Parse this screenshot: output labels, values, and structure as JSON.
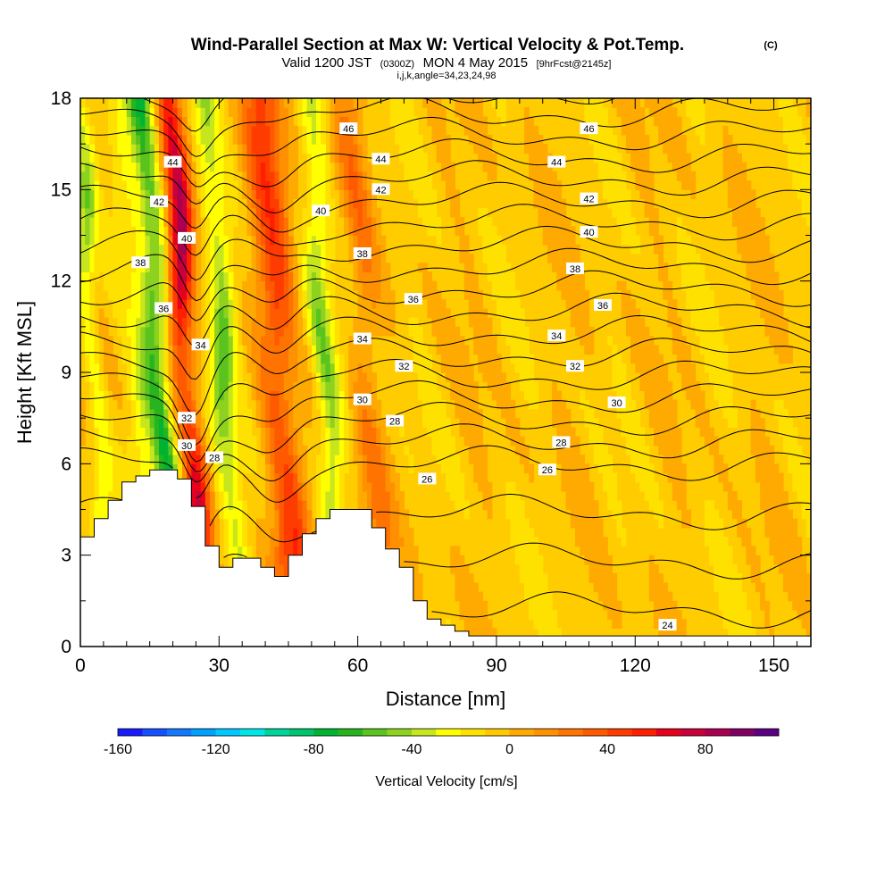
{
  "chart_data": {
    "type": "heatmap",
    "title": "Wind-Parallel Section at Max W: Vertical Velocity & Pot.Temp.",
    "title_mark": "(C)",
    "subtitle": {
      "valid": "Valid 1200 JST",
      "utc": "(0300Z)",
      "date": "MON 4 May 2015",
      "forecast": "[9hrFcst@2145z]"
    },
    "section_info": "i,j,k,angle=34,23,24,98",
    "xlabel": "Distance [nm]",
    "ylabel": "Height [Kft MSL]",
    "xlim": [
      0,
      158
    ],
    "ylim": [
      0,
      18
    ],
    "xticks": [
      0,
      30,
      60,
      90,
      120,
      150
    ],
    "yticks": [
      0,
      3,
      6,
      9,
      12,
      15,
      18
    ],
    "colorbar": {
      "label": "Vertical Velocity [cm/s]",
      "min": -160,
      "max": 110,
      "step": 10,
      "tick_values": [
        -160,
        -120,
        -80,
        -40,
        0,
        40,
        80
      ],
      "colors": [
        "#1a1aff",
        "#1450ff",
        "#1478ff",
        "#00a0ff",
        "#00c8ff",
        "#00e6e6",
        "#00d29b",
        "#00c36e",
        "#00b432",
        "#28b41e",
        "#5ac31e",
        "#8cd21e",
        "#c8e61e",
        "#ffff00",
        "#ffe100",
        "#ffc800",
        "#ffaa00",
        "#ff9100",
        "#ff7300",
        "#ff5a00",
        "#ff3c00",
        "#ff1e00",
        "#e6001e",
        "#c8003c",
        "#aa0050",
        "#820064",
        "#5a0082"
      ]
    },
    "velocity_bands": [
      {
        "x_center": 3,
        "width": 2,
        "peak": -40
      },
      {
        "x_center": 13,
        "width": 3,
        "peak": -20
      },
      {
        "x_center": 17,
        "width": 2.5,
        "peak": -75
      },
      {
        "x_center": 23,
        "width": 2.5,
        "peak": 85
      },
      {
        "x_center": 31,
        "width": 2.5,
        "peak": -45
      },
      {
        "x_center": 43,
        "width": 4,
        "peak": 55
      },
      {
        "x_center": 53,
        "width": 2.5,
        "peak": -40
      },
      {
        "x_center": 62,
        "width": 3,
        "peak": 25
      }
    ],
    "terrain": {
      "x": [
        0,
        3,
        6,
        9,
        12,
        15,
        18,
        21,
        24,
        27,
        30,
        33,
        36,
        39,
        42,
        45,
        48,
        51,
        54,
        57,
        60,
        63,
        66,
        69,
        72,
        75,
        78,
        81,
        84,
        87,
        90,
        100,
        120,
        140,
        158
      ],
      "height": [
        3.6,
        4.2,
        4.8,
        5.4,
        5.6,
        5.8,
        5.8,
        5.5,
        4.6,
        3.3,
        2.6,
        2.9,
        2.9,
        2.6,
        2.3,
        3.0,
        3.7,
        4.2,
        4.5,
        4.5,
        4.5,
        3.9,
        3.2,
        2.6,
        1.5,
        0.9,
        0.7,
        0.5,
        0.35,
        0.35,
        0.35,
        0.35,
        0.35,
        0.35,
        0.35
      ]
    },
    "theta_contours": {
      "min": 24,
      "max": 47,
      "step": 1,
      "labels": [
        {
          "value": 46,
          "x": 58,
          "y": 17.0
        },
        {
          "value": 46,
          "x": 110,
          "y": 17.0
        },
        {
          "value": 44,
          "x": 20,
          "y": 15.9
        },
        {
          "value": 44,
          "x": 65,
          "y": 16.0
        },
        {
          "value": 44,
          "x": 103,
          "y": 15.9
        },
        {
          "value": 42,
          "x": 17,
          "y": 14.6
        },
        {
          "value": 42,
          "x": 65,
          "y": 15.0
        },
        {
          "value": 42,
          "x": 110,
          "y": 14.7
        },
        {
          "value": 40,
          "x": 23,
          "y": 13.4
        },
        {
          "value": 40,
          "x": 52,
          "y": 14.3
        },
        {
          "value": 40,
          "x": 110,
          "y": 13.6
        },
        {
          "value": 38,
          "x": 13,
          "y": 12.6
        },
        {
          "value": 38,
          "x": 61,
          "y": 12.9
        },
        {
          "value": 38,
          "x": 107,
          "y": 12.4
        },
        {
          "value": 36,
          "x": 18,
          "y": 11.1
        },
        {
          "value": 36,
          "x": 72,
          "y": 11.4
        },
        {
          "value": 36,
          "x": 113,
          "y": 11.2
        },
        {
          "value": 34,
          "x": 26,
          "y": 9.9
        },
        {
          "value": 34,
          "x": 61,
          "y": 10.1
        },
        {
          "value": 34,
          "x": 103,
          "y": 10.2
        },
        {
          "value": 32,
          "x": 23,
          "y": 7.5
        },
        {
          "value": 32,
          "x": 70,
          "y": 9.2
        },
        {
          "value": 32,
          "x": 107,
          "y": 9.2
        },
        {
          "value": 30,
          "x": 23,
          "y": 6.6
        },
        {
          "value": 30,
          "x": 61,
          "y": 8.1
        },
        {
          "value": 30,
          "x": 116,
          "y": 8.0
        },
        {
          "value": 28,
          "x": 29,
          "y": 6.2
        },
        {
          "value": 28,
          "x": 68,
          "y": 7.4
        },
        {
          "value": 28,
          "x": 104,
          "y": 6.7
        },
        {
          "value": 26,
          "x": 75,
          "y": 5.5
        },
        {
          "value": 26,
          "x": 101,
          "y": 5.8
        },
        {
          "value": 24,
          "x": 127,
          "y": 0.7
        }
      ]
    }
  }
}
